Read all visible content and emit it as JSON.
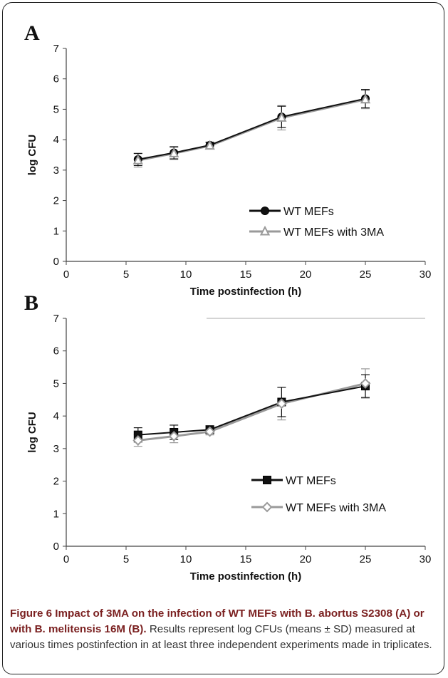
{
  "chart_data": [
    {
      "panel_label": "A",
      "type": "line",
      "x": [
        6,
        9,
        12,
        18,
        25
      ],
      "xlabel": "Time postinfection (h)",
      "ylabel": "log CFU",
      "xlim": [
        0,
        30
      ],
      "ylim": [
        0,
        7
      ],
      "xticks": [
        0,
        5,
        10,
        15,
        20,
        25,
        30
      ],
      "yticks": [
        0,
        1,
        2,
        3,
        4,
        5,
        6,
        7
      ],
      "grid": false,
      "legend_position": "bottom-right",
      "series": [
        {
          "name": "WT MEFs",
          "values": [
            3.35,
            3.57,
            3.82,
            4.75,
            5.35
          ],
          "errors": [
            0.2,
            0.2,
            0.1,
            0.35,
            0.3
          ],
          "color": "#111111",
          "marker": "circle"
        },
        {
          "name": "WT MEFs with 3MA",
          "values": [
            3.32,
            3.55,
            3.8,
            4.72,
            5.32
          ],
          "errors": [
            0.22,
            0.2,
            0.1,
            0.4,
            0.3
          ],
          "color": "#9a9a9a",
          "marker": "triangle"
        }
      ]
    },
    {
      "panel_label": "B",
      "type": "line",
      "x": [
        6,
        9,
        12,
        18,
        25
      ],
      "xlabel": "Time postinfection (h)",
      "ylabel": "log CFU",
      "xlim": [
        0,
        30
      ],
      "ylim": [
        0,
        7
      ],
      "xticks": [
        0,
        5,
        10,
        15,
        20,
        25,
        30
      ],
      "yticks": [
        0,
        1,
        2,
        3,
        4,
        5,
        6,
        7
      ],
      "grid": false,
      "legend_position": "bottom-right",
      "series": [
        {
          "name": "WT MEFs",
          "values": [
            3.42,
            3.5,
            3.58,
            4.43,
            4.92
          ],
          "errors": [
            0.22,
            0.22,
            0.12,
            0.45,
            0.35
          ],
          "color": "#111111",
          "marker": "square"
        },
        {
          "name": "WT MEFs with 3MA",
          "values": [
            3.25,
            3.38,
            3.52,
            4.38,
            5.0
          ],
          "errors": [
            0.18,
            0.2,
            0.1,
            0.5,
            0.45
          ],
          "color": "#9a9a9a",
          "marker": "diamond"
        }
      ]
    }
  ],
  "caption": {
    "title": "Figure 6 Impact of 3MA on the infection of WT MEFs with B. abortus S2308 (A) or with B. melitensis 16M (B).",
    "body": "Results represent log CFUs (means ± SD) measured at various times postinfection in at least three independent experiments made in triplicates."
  }
}
